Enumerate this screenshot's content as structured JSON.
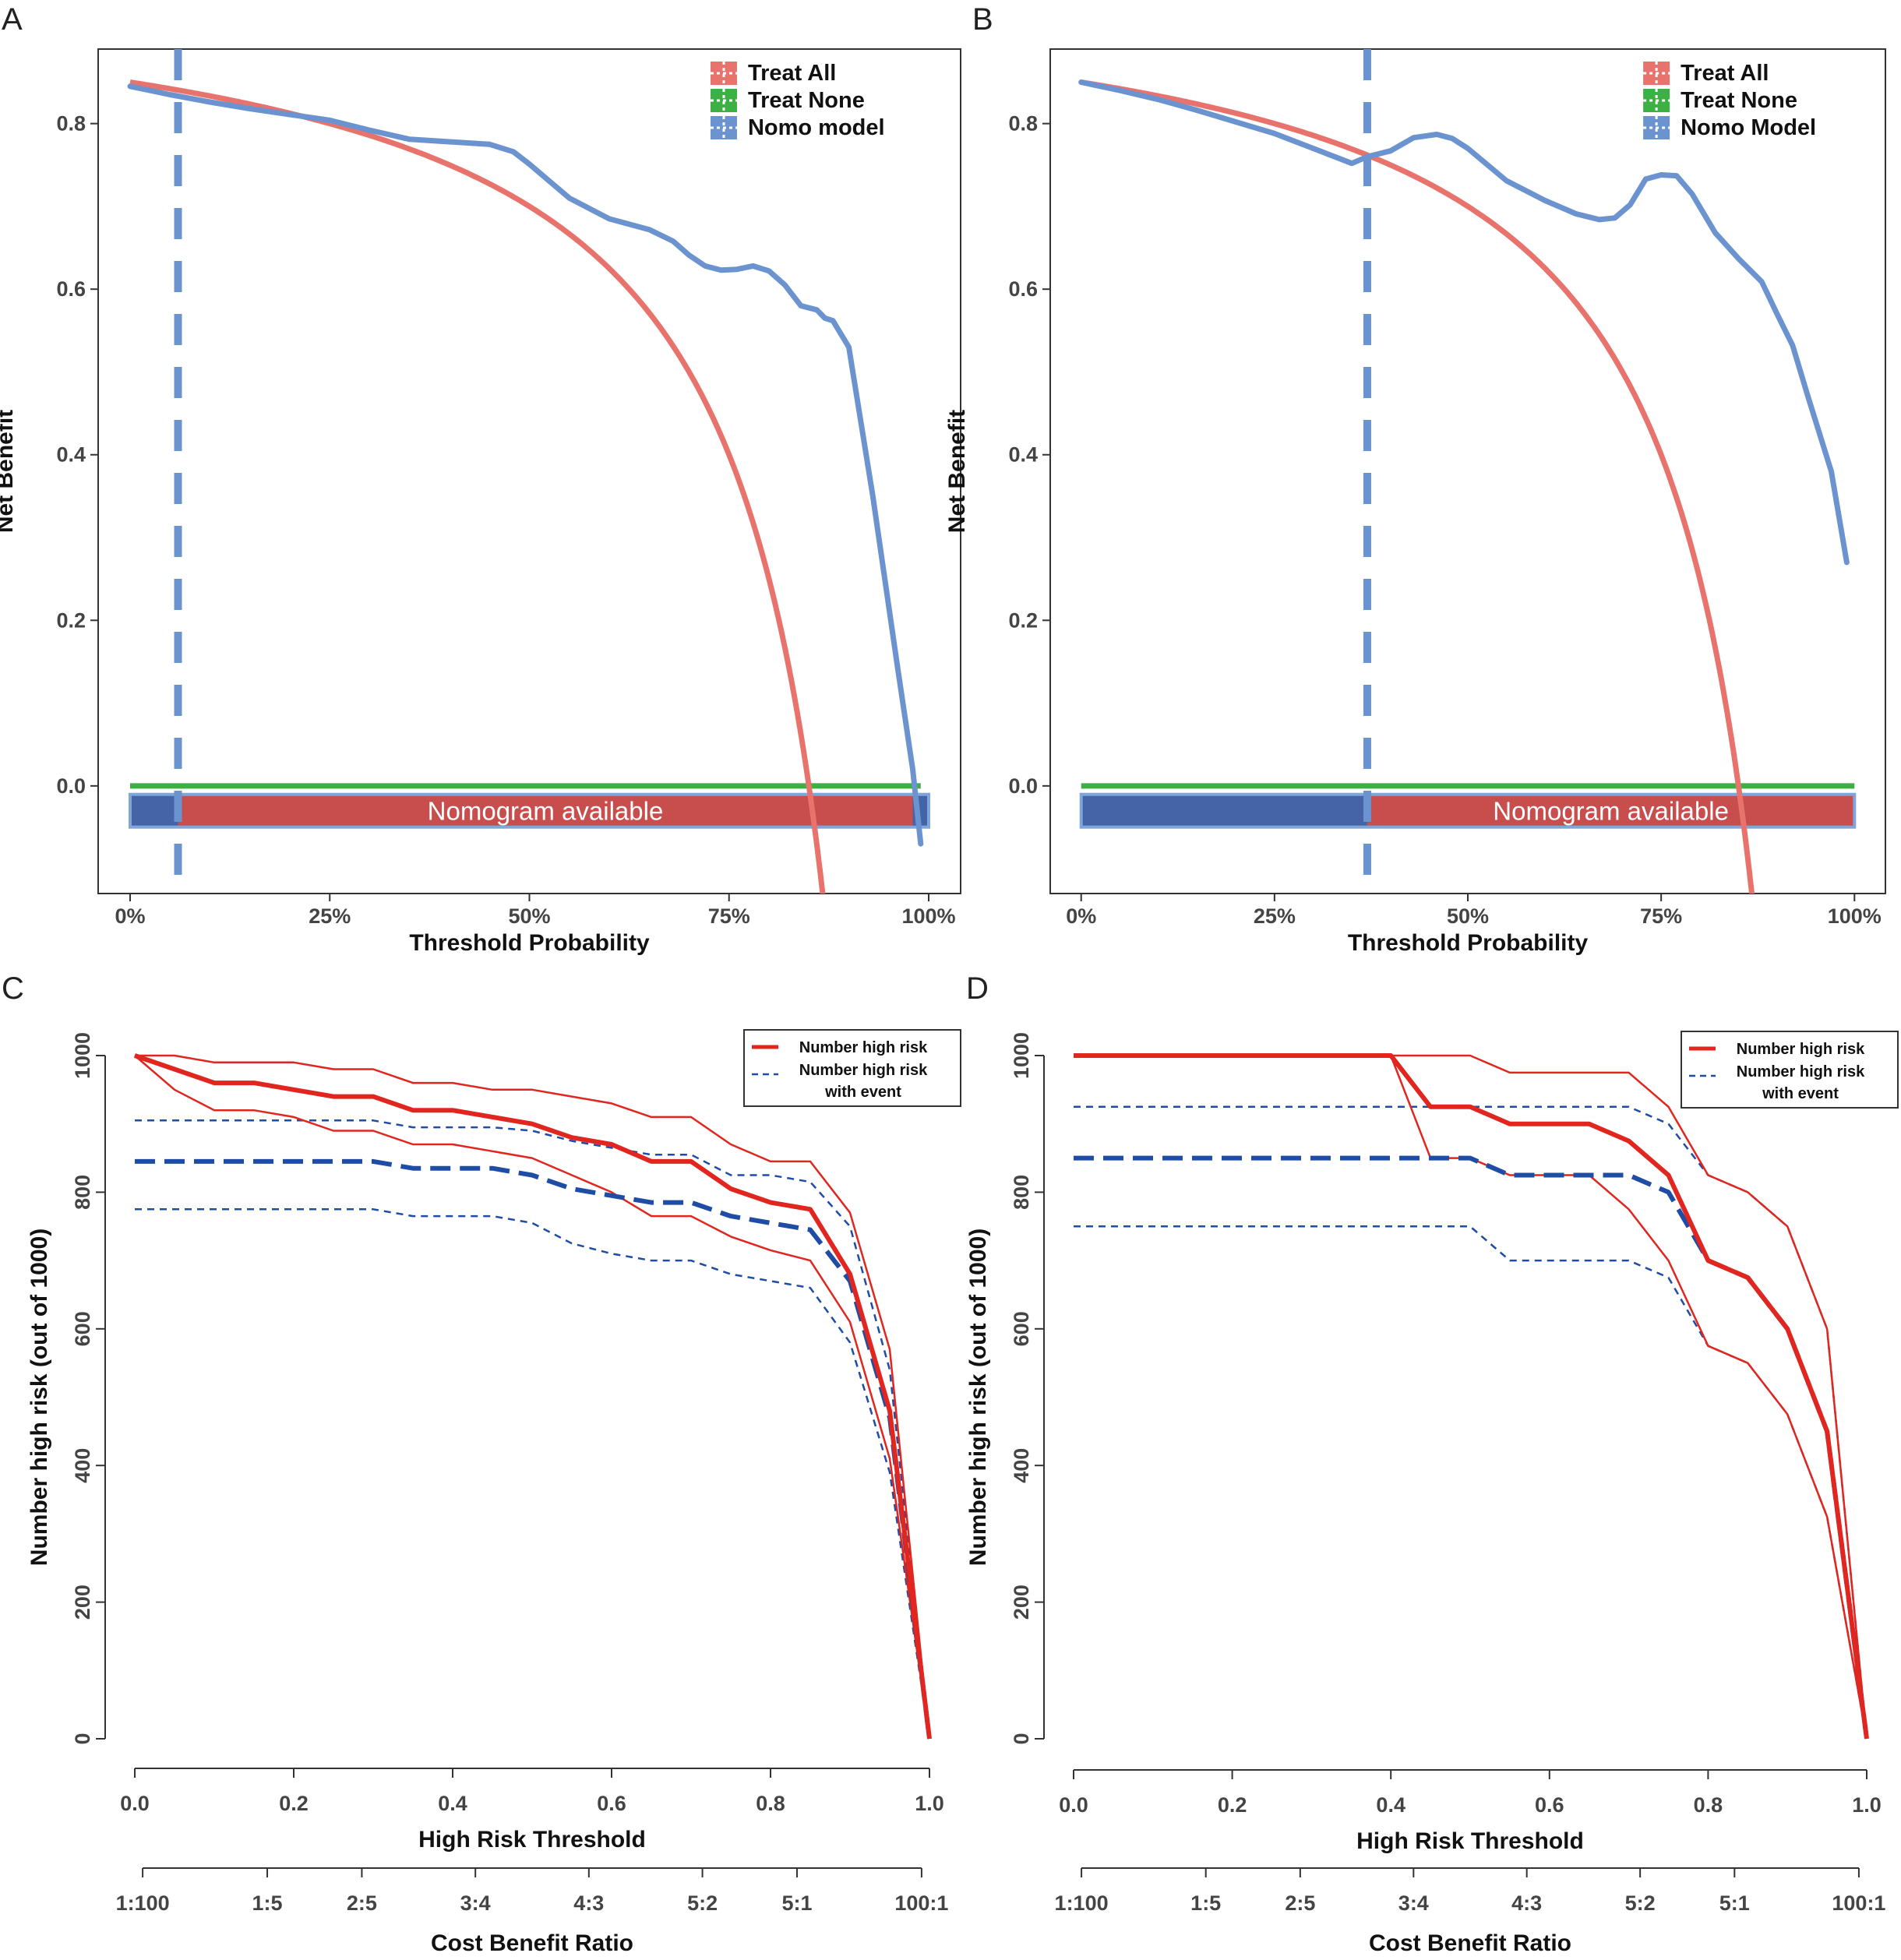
{
  "colors": {
    "treat_all": "#E8736C",
    "treat_none": "#3CB043",
    "nomo": "#6B93CF",
    "band_blue": "#4564A8",
    "band_red": "#C84E4E",
    "band_border": "#7FA6DA",
    "cic_red": "#E0261E",
    "cic_blue": "#1F4CA5",
    "axis": "#333333"
  },
  "chart_data": [
    {
      "panel": "A",
      "type": "line",
      "xlabel": "Threshold Probability",
      "ylabel": "Net Benefit",
      "xlim": [
        -0.04,
        1.04
      ],
      "ylim": [
        -0.13,
        0.89
      ],
      "xticks": [
        0,
        0.25,
        0.5,
        0.75,
        1.0
      ],
      "xtick_labels": [
        "0%",
        "25%",
        "50%",
        "75%",
        "100%"
      ],
      "yticks": [
        0.0,
        0.2,
        0.4,
        0.6,
        0.8
      ],
      "ytick_labels": [
        "0.0",
        "0.2",
        "0.4",
        "0.6",
        "0.8"
      ],
      "prevalence": 0.85,
      "cutoff_line": 0.06,
      "band": {
        "label": "Nomogram available",
        "y": -0.03,
        "x_start": 0.0,
        "available_from": 0.06,
        "available_to": 0.98,
        "x_end": 1.0
      },
      "legend": [
        "Treat All",
        "Treat None",
        "Nomo model"
      ],
      "series": [
        {
          "name": "Treat None",
          "x": [
            0,
            0.99
          ],
          "y": [
            0,
            0
          ]
        },
        {
          "name": "Nomo model",
          "x": [
            0,
            0.05,
            0.1,
            0.15,
            0.2,
            0.25,
            0.3,
            0.35,
            0.4,
            0.45,
            0.48,
            0.5,
            0.55,
            0.6,
            0.65,
            0.68,
            0.7,
            0.72,
            0.74,
            0.76,
            0.78,
            0.8,
            0.82,
            0.84,
            0.86,
            0.87,
            0.88,
            0.9,
            0.93,
            0.96,
            0.98,
            0.99
          ],
          "y": [
            0.845,
            0.835,
            0.826,
            0.818,
            0.811,
            0.804,
            0.792,
            0.781,
            0.778,
            0.775,
            0.766,
            0.751,
            0.71,
            0.685,
            0.672,
            0.658,
            0.641,
            0.628,
            0.623,
            0.624,
            0.628,
            0.622,
            0.605,
            0.58,
            0.575,
            0.565,
            0.562,
            0.53,
            0.35,
            0.15,
            0.02,
            -0.07
          ]
        }
      ]
    },
    {
      "panel": "B",
      "type": "line",
      "xlabel": "Threshold Probability",
      "ylabel": "Net Benefit",
      "xlim": [
        -0.04,
        1.04
      ],
      "ylim": [
        -0.13,
        0.89
      ],
      "xticks": [
        0,
        0.25,
        0.5,
        0.75,
        1.0
      ],
      "xtick_labels": [
        "0%",
        "25%",
        "50%",
        "75%",
        "100%"
      ],
      "yticks": [
        0.0,
        0.2,
        0.4,
        0.6,
        0.8
      ],
      "ytick_labels": [
        "0.0",
        "0.2",
        "0.4",
        "0.6",
        "0.8"
      ],
      "prevalence": 0.85,
      "cutoff_line": 0.37,
      "band": {
        "label": "Nomogram available",
        "y": -0.03,
        "x_start": 0.0,
        "available_from": 0.37,
        "available_to": 1.0,
        "x_end": 1.0
      },
      "legend": [
        "Treat All",
        "Treat None",
        "Nomo Model"
      ],
      "series": [
        {
          "name": "Treat None",
          "x": [
            0,
            1.0
          ],
          "y": [
            0,
            0
          ]
        },
        {
          "name": "Nomo Model",
          "x": [
            0,
            0.05,
            0.1,
            0.15,
            0.2,
            0.25,
            0.3,
            0.35,
            0.37,
            0.4,
            0.43,
            0.46,
            0.48,
            0.5,
            0.55,
            0.6,
            0.64,
            0.67,
            0.69,
            0.71,
            0.73,
            0.75,
            0.77,
            0.79,
            0.82,
            0.85,
            0.88,
            0.9,
            0.92,
            0.94,
            0.97,
            0.99
          ],
          "y": [
            0.85,
            0.84,
            0.829,
            0.816,
            0.802,
            0.788,
            0.77,
            0.752,
            0.76,
            0.767,
            0.783,
            0.787,
            0.782,
            0.77,
            0.731,
            0.707,
            0.691,
            0.684,
            0.686,
            0.702,
            0.733,
            0.738,
            0.737,
            0.715,
            0.668,
            0.637,
            0.609,
            0.57,
            0.532,
            0.47,
            0.38,
            0.27
          ]
        }
      ]
    },
    {
      "panel": "C",
      "type": "line",
      "xlabel": "High Risk Threshold",
      "ylabel": "Number high risk (out of 1000)",
      "xlabel2": "Cost Benefit Ratio",
      "xlim": [
        0,
        1
      ],
      "ylim": [
        0,
        1000
      ],
      "xticks": [
        0,
        0.2,
        0.4,
        0.6,
        0.8,
        1.0
      ],
      "xtick_labels": [
        "0.0",
        "0.2",
        "0.4",
        "0.6",
        "0.8",
        "1.0"
      ],
      "yticks": [
        0,
        200,
        400,
        600,
        800,
        1000
      ],
      "ytick_labels": [
        "0",
        "200",
        "400",
        "600",
        "800",
        "1000"
      ],
      "ratio_ticks": [
        0.0099,
        0.1667,
        0.2857,
        0.4286,
        0.5714,
        0.7143,
        0.8333,
        0.9901
      ],
      "ratio_labels": [
        "1:100",
        "1:5",
        "2:5",
        "3:4",
        "4:3",
        "5:2",
        "5:1",
        "100:1"
      ],
      "legend": [
        "Number high risk",
        "Number high risk",
        "with event"
      ],
      "series": [
        {
          "name": "Number high risk",
          "style": "red-thick",
          "x": [
            0,
            0.05,
            0.1,
            0.15,
            0.2,
            0.25,
            0.3,
            0.35,
            0.4,
            0.45,
            0.5,
            0.55,
            0.6,
            0.65,
            0.7,
            0.75,
            0.8,
            0.85,
            0.9,
            0.95,
            1.0
          ],
          "y": [
            1000,
            980,
            960,
            960,
            950,
            940,
            940,
            920,
            920,
            910,
            900,
            880,
            870,
            845,
            845,
            805,
            785,
            775,
            680,
            480,
            0
          ]
        },
        {
          "name": "Number high risk upper",
          "style": "red-thin",
          "x": [
            0,
            0.05,
            0.1,
            0.15,
            0.2,
            0.25,
            0.3,
            0.35,
            0.4,
            0.45,
            0.5,
            0.55,
            0.6,
            0.65,
            0.7,
            0.75,
            0.8,
            0.85,
            0.9,
            0.95,
            1.0
          ],
          "y": [
            1000,
            1000,
            990,
            990,
            990,
            980,
            980,
            960,
            960,
            950,
            950,
            940,
            930,
            910,
            910,
            870,
            845,
            845,
            770,
            570,
            0
          ]
        },
        {
          "name": "Number high risk lower",
          "style": "red-thin",
          "x": [
            0,
            0.05,
            0.1,
            0.15,
            0.2,
            0.25,
            0.3,
            0.35,
            0.4,
            0.45,
            0.5,
            0.55,
            0.6,
            0.65,
            0.7,
            0.75,
            0.8,
            0.85,
            0.9,
            0.95,
            1.0
          ],
          "y": [
            1000,
            950,
            920,
            920,
            910,
            890,
            890,
            870,
            870,
            860,
            850,
            825,
            800,
            765,
            765,
            735,
            715,
            700,
            610,
            410,
            0
          ]
        },
        {
          "name": "Number high risk with event",
          "style": "blue-thick-dash",
          "x": [
            0,
            0.05,
            0.1,
            0.15,
            0.2,
            0.25,
            0.3,
            0.35,
            0.4,
            0.45,
            0.5,
            0.55,
            0.6,
            0.65,
            0.7,
            0.75,
            0.8,
            0.85,
            0.9,
            0.95,
            1.0
          ],
          "y": [
            845,
            845,
            845,
            845,
            845,
            845,
            845,
            835,
            835,
            835,
            825,
            805,
            795,
            785,
            785,
            765,
            755,
            745,
            670,
            470,
            0
          ]
        },
        {
          "name": "with event upper",
          "style": "blue-thin-dash",
          "x": [
            0,
            0.05,
            0.1,
            0.15,
            0.2,
            0.25,
            0.3,
            0.35,
            0.4,
            0.45,
            0.5,
            0.55,
            0.6,
            0.65,
            0.7,
            0.75,
            0.8,
            0.85,
            0.9,
            0.95,
            1.0
          ],
          "y": [
            905,
            905,
            905,
            905,
            905,
            905,
            905,
            895,
            895,
            895,
            890,
            875,
            865,
            855,
            855,
            825,
            825,
            815,
            750,
            540,
            0
          ]
        },
        {
          "name": "with event lower",
          "style": "blue-thin-dash",
          "x": [
            0,
            0.05,
            0.1,
            0.15,
            0.2,
            0.25,
            0.3,
            0.35,
            0.4,
            0.45,
            0.5,
            0.55,
            0.6,
            0.65,
            0.7,
            0.75,
            0.8,
            0.85,
            0.9,
            0.95,
            1.0
          ],
          "y": [
            775,
            775,
            775,
            775,
            775,
            775,
            775,
            765,
            765,
            765,
            755,
            725,
            710,
            700,
            700,
            680,
            670,
            660,
            580,
            390,
            0
          ]
        }
      ]
    },
    {
      "panel": "D",
      "type": "line",
      "xlabel": "High Risk Threshold",
      "ylabel": "Number high risk (out of 1000)",
      "xlabel2": "Cost Benefit Ratio",
      "xlim": [
        0,
        1
      ],
      "ylim": [
        0,
        1000
      ],
      "xticks": [
        0,
        0.2,
        0.4,
        0.6,
        0.8,
        1.0
      ],
      "xtick_labels": [
        "0.0",
        "0.2",
        "0.4",
        "0.6",
        "0.8",
        "1.0"
      ],
      "yticks": [
        0,
        200,
        400,
        600,
        800,
        1000
      ],
      "ytick_labels": [
        "0",
        "200",
        "400",
        "600",
        "800",
        "1000"
      ],
      "ratio_ticks": [
        0.0099,
        0.1667,
        0.2857,
        0.4286,
        0.5714,
        0.7143,
        0.8333,
        0.9901
      ],
      "ratio_labels": [
        "1:100",
        "1:5",
        "2:5",
        "3:4",
        "4:3",
        "5:2",
        "5:1",
        "100:1"
      ],
      "legend": [
        "Number high risk",
        "Number high risk",
        "with event"
      ],
      "series": [
        {
          "name": "Number high risk",
          "style": "red-thick",
          "x": [
            0,
            0.4,
            0.45,
            0.5,
            0.55,
            0.6,
            0.65,
            0.7,
            0.75,
            0.8,
            0.85,
            0.9,
            0.95,
            1.0
          ],
          "y": [
            1000,
            1000,
            925,
            925,
            900,
            900,
            900,
            875,
            825,
            700,
            675,
            600,
            450,
            0
          ]
        },
        {
          "name": "Number high risk upper",
          "style": "red-thin",
          "x": [
            0,
            0.4,
            0.45,
            0.5,
            0.55,
            0.6,
            0.65,
            0.7,
            0.75,
            0.8,
            0.85,
            0.9,
            0.95,
            1.0
          ],
          "y": [
            1000,
            1000,
            1000,
            1000,
            975,
            975,
            975,
            975,
            925,
            825,
            800,
            750,
            600,
            0
          ]
        },
        {
          "name": "Number high risk lower",
          "style": "red-thin",
          "x": [
            0,
            0.4,
            0.45,
            0.5,
            0.55,
            0.6,
            0.65,
            0.7,
            0.75,
            0.8,
            0.85,
            0.9,
            0.95,
            1.0
          ],
          "y": [
            1000,
            1000,
            850,
            850,
            825,
            825,
            825,
            775,
            700,
            575,
            550,
            475,
            325,
            0
          ]
        },
        {
          "name": "Number high risk with event",
          "style": "blue-thick-dash",
          "x": [
            0,
            0.4,
            0.45,
            0.5,
            0.55,
            0.6,
            0.65,
            0.7,
            0.75,
            0.8,
            0.85,
            0.9,
            0.95,
            1.0
          ],
          "y": [
            850,
            850,
            850,
            850,
            825,
            825,
            825,
            825,
            800,
            700,
            675,
            600,
            450,
            0
          ]
        },
        {
          "name": "with event upper",
          "style": "blue-thin-dash",
          "x": [
            0,
            0.4,
            0.45,
            0.5,
            0.55,
            0.6,
            0.65,
            0.7,
            0.75,
            0.8,
            0.85,
            0.9,
            0.95,
            1.0
          ],
          "y": [
            925,
            925,
            925,
            925,
            925,
            925,
            925,
            925,
            900,
            825,
            800,
            750,
            600,
            0
          ]
        },
        {
          "name": "with event lower",
          "style": "blue-thin-dash",
          "x": [
            0,
            0.4,
            0.45,
            0.5,
            0.55,
            0.6,
            0.65,
            0.7,
            0.75,
            0.8,
            0.85,
            0.9,
            0.95,
            1.0
          ],
          "y": [
            750,
            750,
            750,
            750,
            700,
            700,
            700,
            700,
            675,
            575,
            550,
            475,
            325,
            0
          ]
        }
      ]
    }
  ]
}
